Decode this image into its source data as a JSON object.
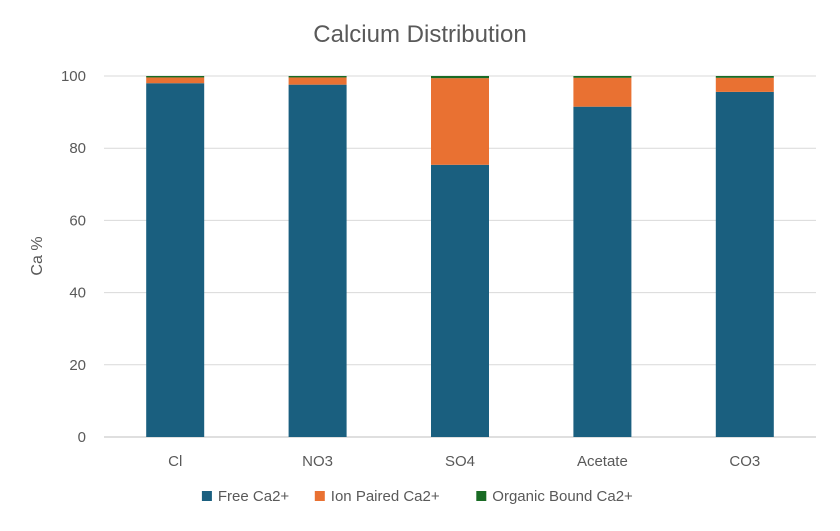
{
  "chart_data": {
    "type": "bar",
    "stacked": true,
    "title": "Calcium Distribution",
    "xlabel": "",
    "ylabel": "Ca %",
    "ylim": [
      0,
      100
    ],
    "yticks": [
      "0",
      "20",
      "40",
      "60",
      "80",
      "100"
    ],
    "categories": [
      "Cl",
      "NO3",
      "SO4",
      "Acetate",
      "CO3"
    ],
    "grid": true,
    "legend_position": "bottom",
    "series": [
      {
        "name": "Free Ca2+",
        "color": "#1a5f7f",
        "values": [
          98,
          97.6,
          75.4,
          91.5,
          95.6
        ]
      },
      {
        "name": "Ion Paired Ca2+",
        "color": "#e97132",
        "values": [
          1.6,
          2.0,
          24.0,
          8.0,
          3.9
        ]
      },
      {
        "name": "Organic Bound Ca2+",
        "color": "#196b24",
        "values": [
          0.4,
          0.4,
          0.6,
          0.5,
          0.5
        ]
      }
    ]
  }
}
